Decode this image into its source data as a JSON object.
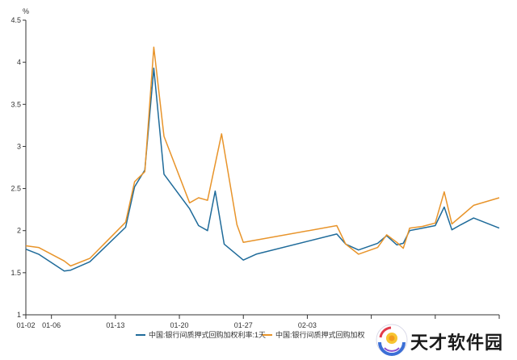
{
  "chart_data": {
    "type": "line",
    "title": "",
    "ylabel": "%",
    "xlabel": "",
    "ylim": [
      1,
      4.5
    ],
    "yticks": [
      "1",
      "1.5",
      "2",
      "2.5",
      "3",
      "3.5",
      "4",
      "4.5"
    ],
    "x_ticks": [
      {
        "label": "01-02",
        "i": 0
      },
      {
        "label": "01-06",
        "i": 2
      },
      {
        "label": "01-13",
        "i": 7
      },
      {
        "label": "01-20",
        "i": 12
      },
      {
        "label": "01-27",
        "i": 17
      },
      {
        "label": "02-03",
        "i": 22
      },
      {
        "label": "",
        "i": 27
      },
      {
        "label": "",
        "i": 32
      },
      {
        "label": "",
        "i": 37
      }
    ],
    "x_count": 38,
    "legend_position": "bottom",
    "series": [
      {
        "name": "中国:银行间质押式回购加权利率:1天",
        "color": "#1f6b9a",
        "points": [
          [
            0,
            1.78
          ],
          [
            1,
            1.72
          ],
          [
            3,
            1.52
          ],
          [
            3.5,
            1.53
          ],
          [
            5,
            1.63
          ],
          [
            7.8,
            2.04
          ],
          [
            8.5,
            2.52
          ],
          [
            9.3,
            2.72
          ],
          [
            10,
            3.93
          ],
          [
            10.8,
            2.67
          ],
          [
            12.8,
            2.26
          ],
          [
            13.5,
            2.06
          ],
          [
            14.2,
            2.0
          ],
          [
            14.8,
            2.47
          ],
          [
            15.5,
            1.84
          ],
          [
            17,
            1.65
          ],
          [
            18,
            1.72
          ],
          [
            24.3,
            1.96
          ],
          [
            25,
            1.84
          ],
          [
            26,
            1.77
          ],
          [
            27.5,
            1.85
          ],
          [
            28.2,
            1.94
          ],
          [
            29,
            1.83
          ],
          [
            29.5,
            1.85
          ],
          [
            30,
            2.0
          ],
          [
            31,
            2.03
          ],
          [
            32,
            2.06
          ],
          [
            32.7,
            2.28
          ],
          [
            33.3,
            2.01
          ],
          [
            34,
            2.07
          ],
          [
            35,
            2.15
          ],
          [
            37,
            2.03
          ]
        ]
      },
      {
        "name": "中国:银行间质押式回购加权",
        "color": "#e8942a",
        "points": [
          [
            0,
            1.82
          ],
          [
            1,
            1.8
          ],
          [
            3,
            1.64
          ],
          [
            3.5,
            1.58
          ],
          [
            5,
            1.67
          ],
          [
            7.8,
            2.1
          ],
          [
            8.5,
            2.58
          ],
          [
            9.3,
            2.7
          ],
          [
            10,
            4.18
          ],
          [
            10.8,
            3.12
          ],
          [
            12.8,
            2.33
          ],
          [
            13.5,
            2.39
          ],
          [
            14.2,
            2.36
          ],
          [
            15.3,
            3.15
          ],
          [
            16.5,
            2.07
          ],
          [
            17,
            1.86
          ],
          [
            24.3,
            2.06
          ],
          [
            25,
            1.84
          ],
          [
            26,
            1.72
          ],
          [
            27.5,
            1.8
          ],
          [
            28.2,
            1.95
          ],
          [
            29,
            1.86
          ],
          [
            29.5,
            1.79
          ],
          [
            30,
            2.03
          ],
          [
            31,
            2.05
          ],
          [
            32,
            2.09
          ],
          [
            32.7,
            2.46
          ],
          [
            33.3,
            2.08
          ],
          [
            34,
            2.17
          ],
          [
            35,
            2.3
          ],
          [
            37,
            2.39
          ]
        ]
      }
    ]
  },
  "watermark": {
    "text": "天才软件园",
    "icon": "app-logo-icon"
  }
}
